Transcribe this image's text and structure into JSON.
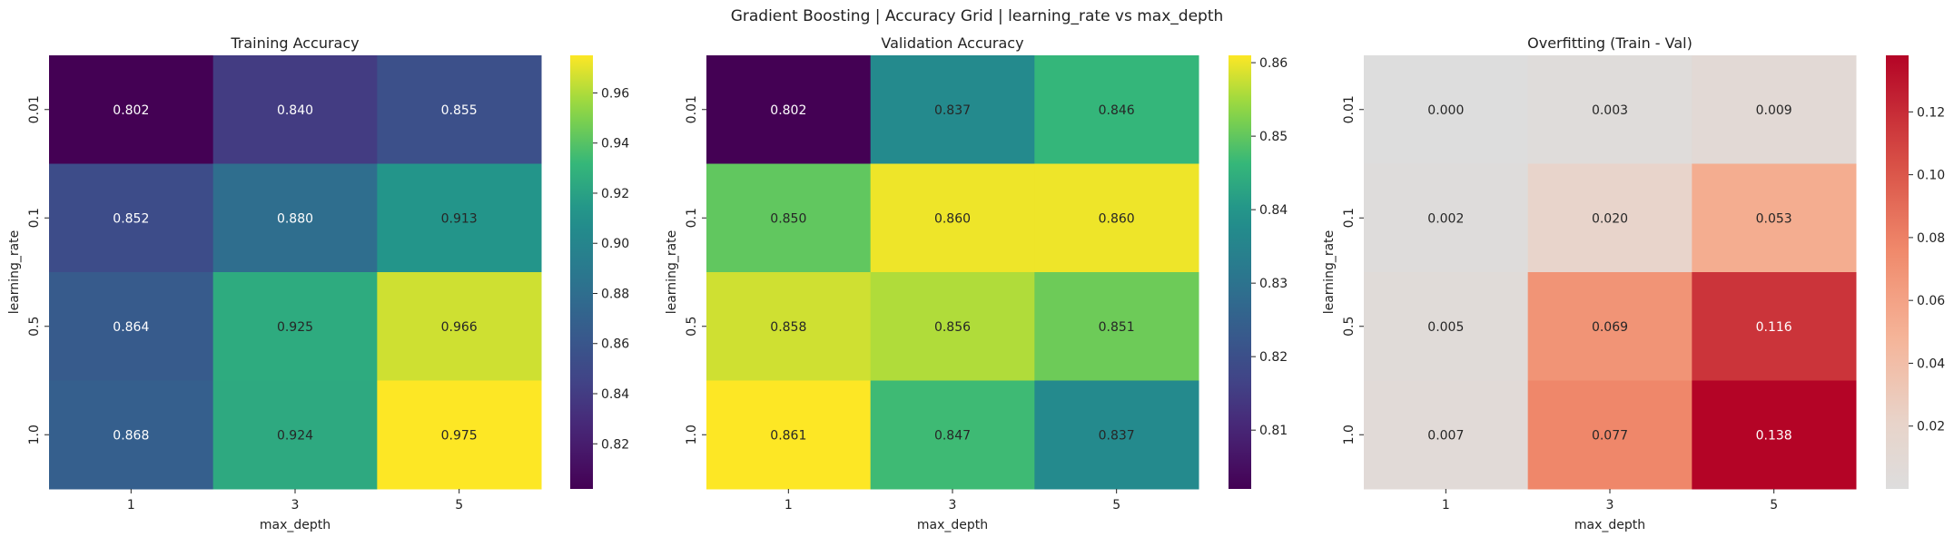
{
  "figure": {
    "suptitle": "Gradient Boosting | Accuracy Grid | learning_rate vs max_depth"
  },
  "chart_data": [
    {
      "type": "heatmap",
      "title": "Training Accuracy",
      "xlabel": "max_depth",
      "ylabel": "learning_rate",
      "x_categories": [
        "1",
        "3",
        "5"
      ],
      "y_categories": [
        "0.01",
        "0.1",
        "0.5",
        "1.0"
      ],
      "values": [
        [
          0.802,
          0.84,
          0.855
        ],
        [
          0.852,
          0.88,
          0.913
        ],
        [
          0.864,
          0.925,
          0.966
        ],
        [
          0.868,
          0.924,
          0.975
        ]
      ],
      "annotations": [
        [
          "0.802",
          "0.840",
          "0.855"
        ],
        [
          "0.852",
          "0.880",
          "0.913"
        ],
        [
          "0.864",
          "0.925",
          "0.966"
        ],
        [
          "0.868",
          "0.924",
          "0.975"
        ]
      ],
      "colormap": "viridis",
      "vmin": 0.802,
      "vmax": 0.975,
      "colorbar_ticks": [
        "0.82",
        "0.84",
        "0.86",
        "0.88",
        "0.90",
        "0.92",
        "0.94",
        "0.96"
      ]
    },
    {
      "type": "heatmap",
      "title": "Validation Accuracy",
      "xlabel": "max_depth",
      "ylabel": "learning_rate",
      "x_categories": [
        "1",
        "3",
        "5"
      ],
      "y_categories": [
        "0.01",
        "0.1",
        "0.5",
        "1.0"
      ],
      "values": [
        [
          0.802,
          0.837,
          0.846
        ],
        [
          0.85,
          0.86,
          0.86
        ],
        [
          0.858,
          0.856,
          0.851
        ],
        [
          0.861,
          0.847,
          0.837
        ]
      ],
      "annotations": [
        [
          "0.802",
          "0.837",
          "0.846"
        ],
        [
          "0.850",
          "0.860",
          "0.860"
        ],
        [
          "0.858",
          "0.856",
          "0.851"
        ],
        [
          "0.861",
          "0.847",
          "0.837"
        ]
      ],
      "colormap": "viridis",
      "vmin": 0.802,
      "vmax": 0.861,
      "colorbar_ticks": [
        "0.81",
        "0.82",
        "0.83",
        "0.84",
        "0.85",
        "0.86"
      ]
    },
    {
      "type": "heatmap",
      "title": "Overfitting (Train - Val)",
      "xlabel": "max_depth",
      "ylabel": "learning_rate",
      "x_categories": [
        "1",
        "3",
        "5"
      ],
      "y_categories": [
        "0.01",
        "0.1",
        "0.5",
        "1.0"
      ],
      "values": [
        [
          0.0,
          0.003,
          0.009
        ],
        [
          0.002,
          0.02,
          0.053
        ],
        [
          0.005,
          0.069,
          0.116
        ],
        [
          0.007,
          0.077,
          0.138
        ]
      ],
      "annotations": [
        [
          "0.000",
          "0.003",
          "0.009"
        ],
        [
          "0.002",
          "0.020",
          "0.053"
        ],
        [
          "0.005",
          "0.069",
          "0.116"
        ],
        [
          "0.007",
          "0.077",
          "0.138"
        ]
      ],
      "colormap": "coolwarm (centered at 0)",
      "vmin": 0.0,
      "vmax": 0.138,
      "colorbar_ticks": [
        "0.02",
        "0.04",
        "0.06",
        "0.08",
        "0.10",
        "0.12"
      ]
    }
  ]
}
